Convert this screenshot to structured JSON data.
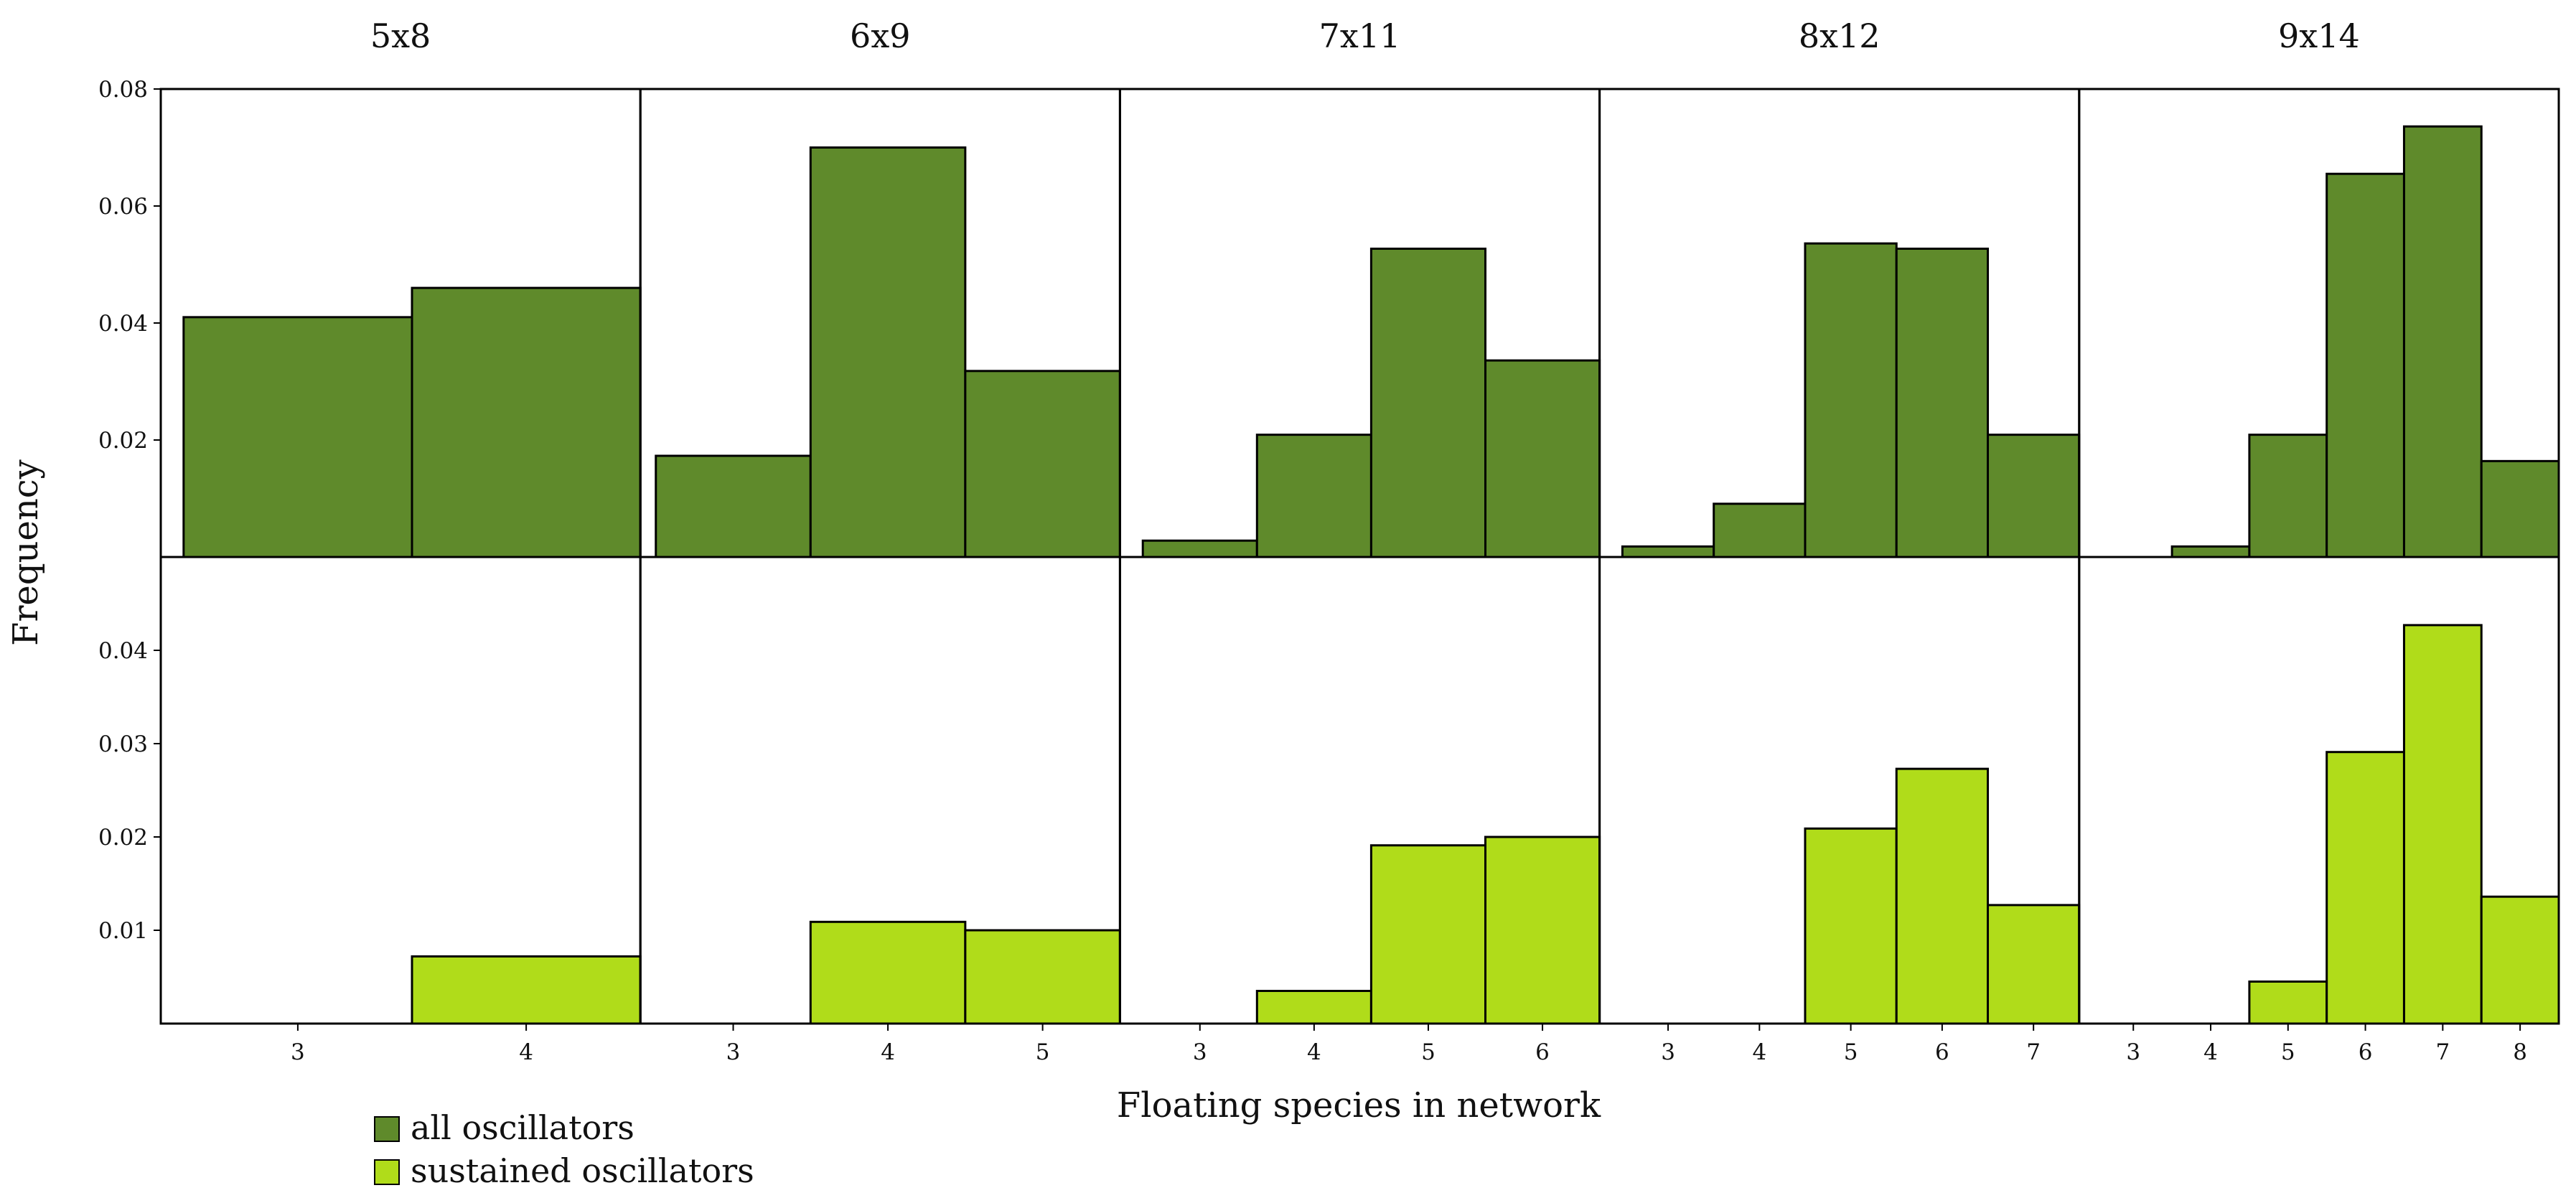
{
  "chart_data": {
    "type": "bar",
    "xlabel": "Floating species in network",
    "ylabel": "Frequency",
    "legend": {
      "placement": "bottom-left",
      "entries": [
        {
          "label": "all oscillators",
          "color": "#5f8a2b"
        },
        {
          "label": "sustained oscillators",
          "color": "#b0dc1a"
        }
      ]
    },
    "colors": {
      "all": "#5f8a2b",
      "sustained": "#b0dc1a",
      "edge": "#000000"
    },
    "rows": [
      {
        "name": "all oscillators",
        "ylim": [
          0,
          0.08
        ],
        "yticks": [
          0.02,
          0.04,
          0.06,
          0.08
        ],
        "ytick_labels": [
          "0.02",
          "0.04",
          "0.06",
          "0.08"
        ]
      },
      {
        "name": "sustained oscillators",
        "ylim": [
          0,
          0.05
        ],
        "yticks": [
          0.01,
          0.02,
          0.03,
          0.04
        ],
        "ytick_labels": [
          "0.01",
          "0.02",
          "0.03",
          "0.04"
        ]
      }
    ],
    "panels": [
      {
        "title": "5x8",
        "xlim": [
          2.4,
          4.5
        ],
        "categories": [
          3,
          4
        ],
        "all": [
          0.041,
          0.046
        ],
        "sustained": [
          0,
          0.0072
        ]
      },
      {
        "title": "6x9",
        "xlim": [
          2.4,
          5.5
        ],
        "categories": [
          3,
          4,
          5
        ],
        "all": [
          0.0173,
          0.07,
          0.0318
        ],
        "sustained": [
          0,
          0.0109,
          0.01
        ]
      },
      {
        "title": "7x11",
        "xlim": [
          2.3,
          6.5
        ],
        "categories": [
          3,
          4,
          5,
          6
        ],
        "all": [
          0.0028,
          0.0209,
          0.0527,
          0.0336
        ],
        "sustained": [
          0,
          0.0035,
          0.0191,
          0.02
        ]
      },
      {
        "title": "8x12",
        "xlim": [
          2.25,
          7.5
        ],
        "categories": [
          3,
          4,
          5,
          6,
          7
        ],
        "all": [
          0.0018,
          0.0091,
          0.0536,
          0.0527,
          0.0209
        ],
        "sustained": [
          0,
          0,
          0.0209,
          0.0273,
          0.0127
        ]
      },
      {
        "title": "9x14",
        "xlim": [
          2.3,
          8.5
        ],
        "categories": [
          3,
          4,
          5,
          6,
          7,
          8
        ],
        "all": [
          0,
          0.0018,
          0.0209,
          0.0655,
          0.0736,
          0.0164
        ],
        "sustained": [
          0,
          0,
          0.0045,
          0.0291,
          0.0427,
          0.0136
        ]
      }
    ]
  }
}
